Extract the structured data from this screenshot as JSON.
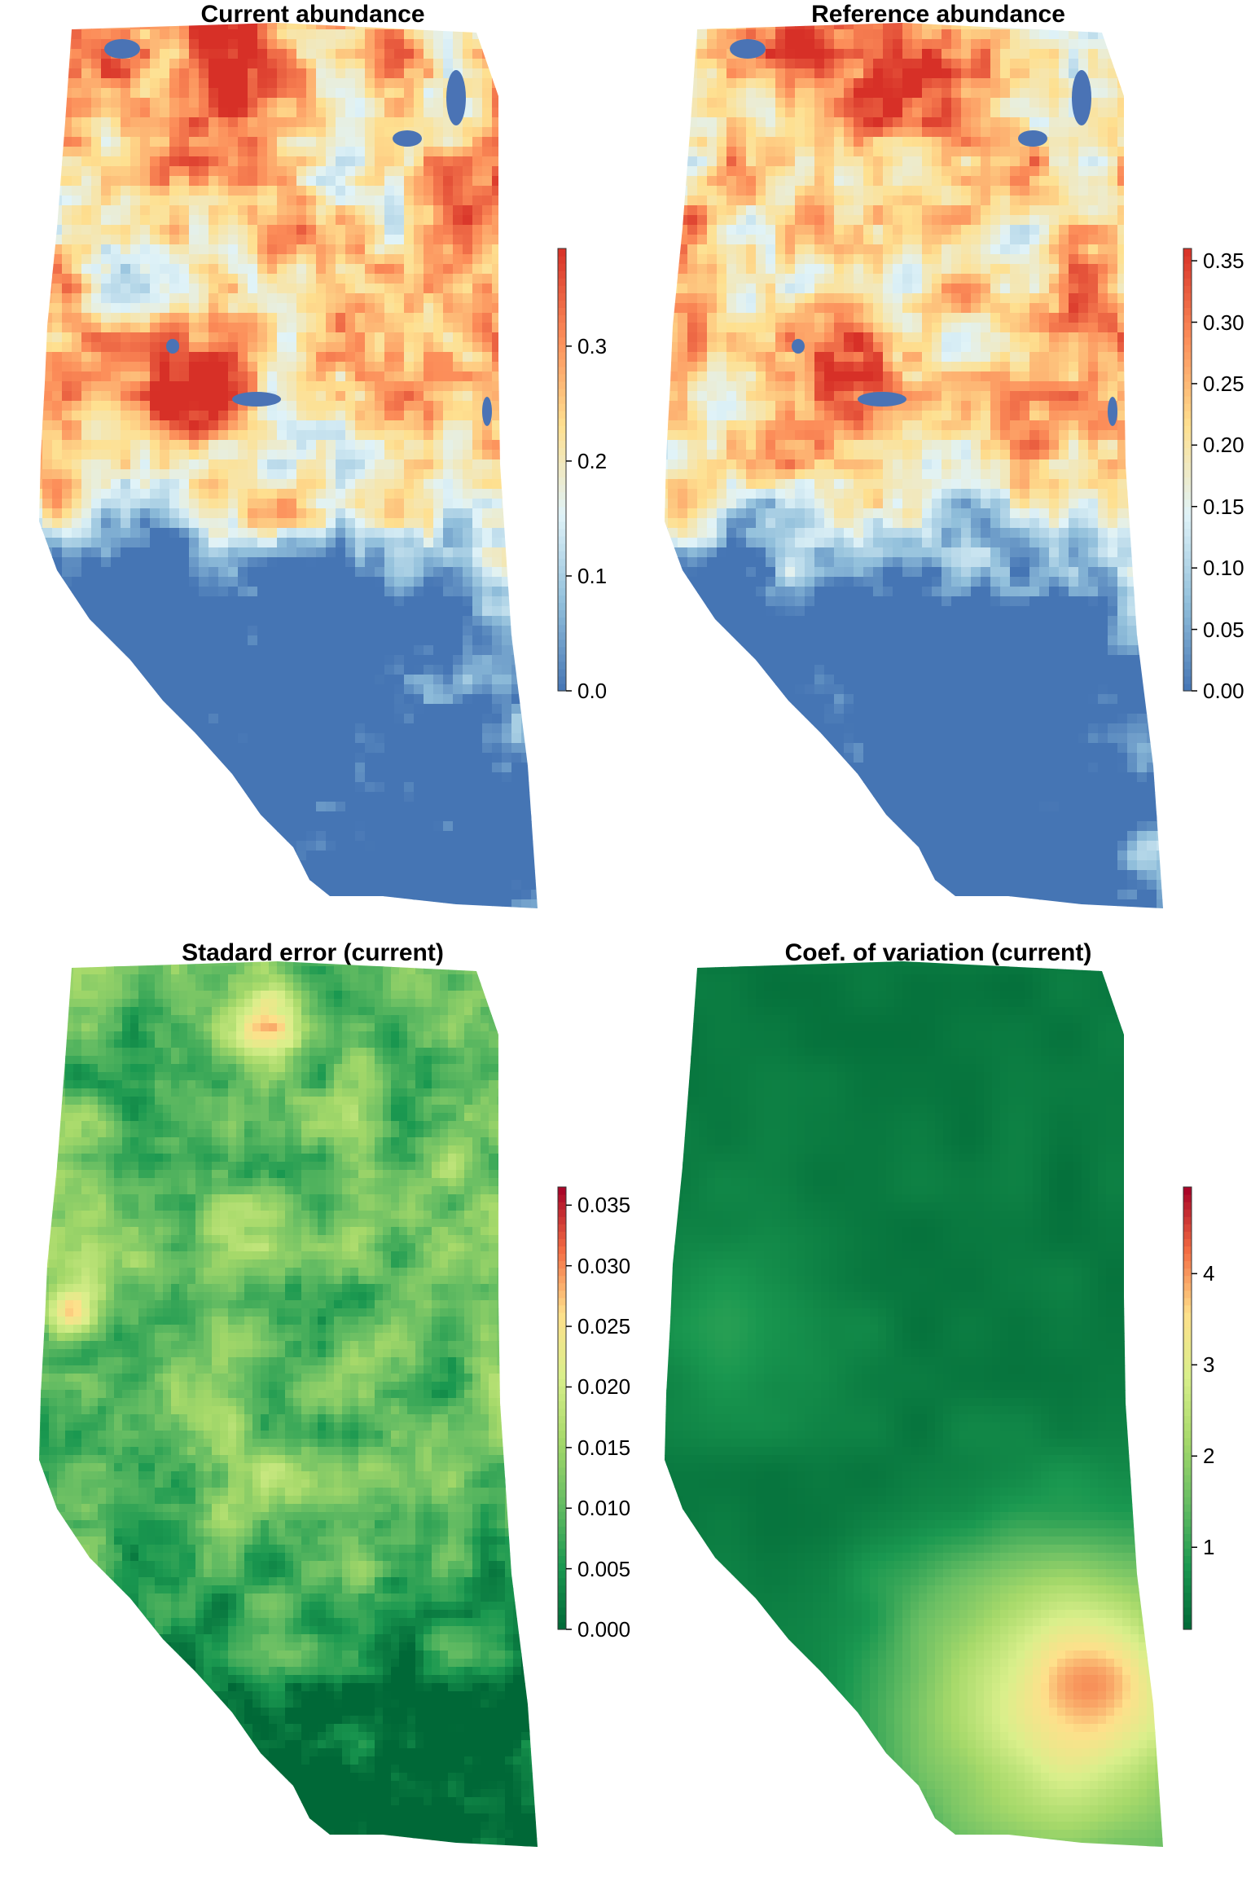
{
  "panels": [
    {
      "id": "current-abundance",
      "title": "Current abundance",
      "palette": [
        "#4575b4",
        "#91bfdb",
        "#e0f3f8",
        "#fee090",
        "#fc8d59",
        "#d73027"
      ],
      "legend": {
        "min": 0.0,
        "max": 0.385,
        "ticks": [
          "0.0",
          "0.1",
          "0.2",
          "0.3"
        ],
        "tick_values": [
          0.0,
          0.1,
          0.2,
          0.3
        ]
      }
    },
    {
      "id": "reference-abundance",
      "title": "Reference abundance",
      "palette": [
        "#4575b4",
        "#91bfdb",
        "#e0f3f8",
        "#fee090",
        "#fc8d59",
        "#d73027"
      ],
      "legend": {
        "min": 0.0,
        "max": 0.36,
        "ticks": [
          "0.00",
          "0.05",
          "0.10",
          "0.15",
          "0.20",
          "0.25",
          "0.30",
          "0.35"
        ],
        "tick_values": [
          0.0,
          0.05,
          0.1,
          0.15,
          0.2,
          0.25,
          0.3,
          0.35
        ]
      }
    },
    {
      "id": "standard-error",
      "title": "Stadard error (current)",
      "palette": [
        "#006837",
        "#1a9850",
        "#66bd63",
        "#a6d96a",
        "#d9ef8b",
        "#fee08b",
        "#f46d43",
        "#a50026"
      ],
      "legend": {
        "min": 0.0,
        "max": 0.0365,
        "ticks": [
          "0.000",
          "0.005",
          "0.010",
          "0.015",
          "0.020",
          "0.025",
          "0.030",
          "0.035"
        ],
        "tick_values": [
          0.0,
          0.005,
          0.01,
          0.015,
          0.02,
          0.025,
          0.03,
          0.035
        ]
      }
    },
    {
      "id": "coef-variation",
      "title": "Coef. of variation (current)",
      "palette": [
        "#006837",
        "#1a9850",
        "#66bd63",
        "#a6d96a",
        "#d9ef8b",
        "#fee08b",
        "#f46d43",
        "#a50026"
      ],
      "legend": {
        "min": 0.1,
        "max": 4.95,
        "ticks": [
          "1",
          "2",
          "3",
          "4"
        ],
        "tick_values": [
          1,
          2,
          3,
          4
        ]
      }
    }
  ]
}
